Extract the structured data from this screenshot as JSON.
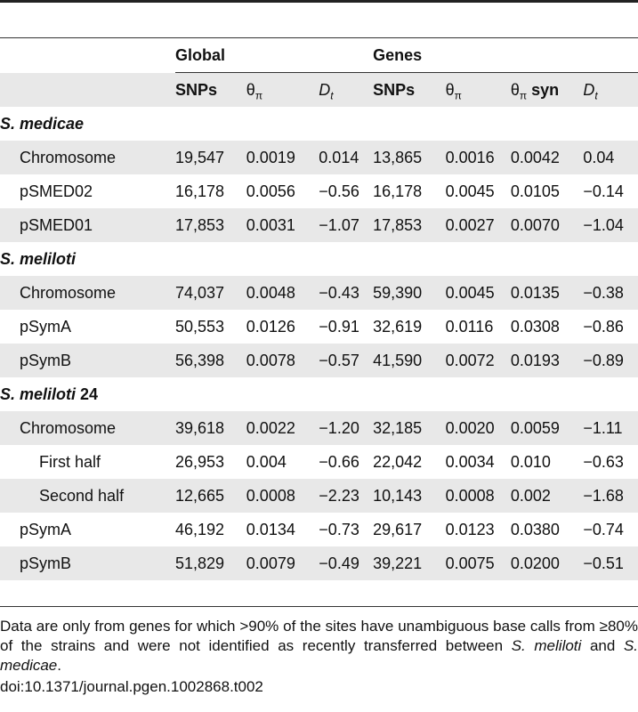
{
  "table": {
    "group_headers": [
      "Global",
      "Genes"
    ],
    "columns": [
      "SNPs",
      "θπ",
      "Dt",
      "SNPs",
      "θπ",
      "θπ syn",
      "Dt"
    ],
    "groups": [
      {
        "name": "S. medicae",
        "rows": [
          {
            "label": "Chromosome",
            "cells": [
              "19,547",
              "0.0019",
              "0.014",
              "13,865",
              "0.0016",
              "0.0042",
              "0.04"
            ]
          },
          {
            "label": "pSMED02",
            "cells": [
              "16,178",
              "0.0056",
              "−0.56",
              "16,178",
              "0.0045",
              "0.0105",
              "−0.14"
            ]
          },
          {
            "label": "pSMED01",
            "cells": [
              "17,853",
              "0.0031",
              "−1.07",
              "17,853",
              "0.0027",
              "0.0070",
              "−1.04"
            ]
          }
        ]
      },
      {
        "name": "S. meliloti",
        "rows": [
          {
            "label": "Chromosome",
            "cells": [
              "74,037",
              "0.0048",
              "−0.43",
              "59,390",
              "0.0045",
              "0.0135",
              "−0.38"
            ]
          },
          {
            "label": "pSymA",
            "cells": [
              "50,553",
              "0.0126",
              "−0.91",
              "32,619",
              "0.0116",
              "0.0308",
              "−0.86"
            ]
          },
          {
            "label": "pSymB",
            "cells": [
              "56,398",
              "0.0078",
              "−0.57",
              "41,590",
              "0.0072",
              "0.0193",
              "−0.89"
            ]
          }
        ]
      },
      {
        "name": "S. meliloti",
        "name_suffix": "24",
        "rows": [
          {
            "label": "Chromosome",
            "cells": [
              "39,618",
              "0.0022",
              "−1.20",
              "32,185",
              "0.0020",
              "0.0059",
              "−1.11"
            ]
          },
          {
            "label": "First half",
            "cells": [
              "26,953",
              "0.004",
              "−0.66",
              "22,042",
              "0.0034",
              "0.010",
              "−0.63"
            ]
          },
          {
            "label": "Second half",
            "cells": [
              "12,665",
              "0.0008",
              "−2.23",
              "10,143",
              "0.0008",
              "0.002",
              "−1.68"
            ]
          },
          {
            "label": "pSymA",
            "cells": [
              "46,192",
              "0.0134",
              "−0.73",
              "29,617",
              "0.0123",
              "0.0380",
              "−0.74"
            ]
          },
          {
            "label": "pSymB",
            "cells": [
              "51,829",
              "0.0079",
              "−0.49",
              "39,221",
              "0.0075",
              "0.0200",
              "−0.51"
            ]
          }
        ]
      }
    ]
  },
  "footnote": {
    "p1": "Data are only from genes for which >90% of the sites have unambiguous base calls from ≥80% of the strains and were not identified as recently transferred between ",
    "sp1": "S. meliloti",
    "and": " and ",
    "sp2": "S. medicae",
    "end": ".",
    "doi": "doi:10.1371/journal.pgen.1002868.t002"
  }
}
